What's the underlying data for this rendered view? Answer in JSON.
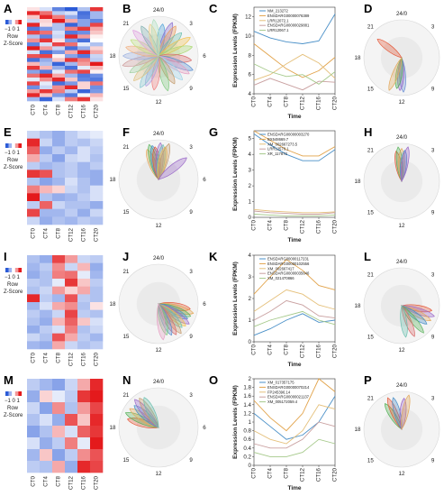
{
  "figure": {
    "rows": [
      {
        "heatmap_letter": "A",
        "radial1_letter": "B",
        "line_letter": "C",
        "radial2_letter": "D",
        "scale": {
          "ticks": "−1 0 1",
          "line1": "Row",
          "line2": "Z-Score"
        },
        "heatmap": [
          [
            0.2,
            -0.3,
            -1.2,
            -1.6,
            -0.6,
            1.4
          ],
          [
            1.5,
            1.0,
            -0.5,
            -0.3,
            -1.4,
            -0.7
          ],
          [
            0.4,
            1.5,
            0.9,
            -0.8,
            -1.3,
            -0.7
          ],
          [
            -0.4,
            0.3,
            1.6,
            0.6,
            -0.9,
            -1.2
          ],
          [
            1.5,
            0.2,
            -0.6,
            -1.5,
            -0.9,
            1.3
          ],
          [
            -1.3,
            -1.0,
            -0.6,
            0.9,
            1.4,
            0.6
          ],
          [
            1.3,
            1.0,
            -0.3,
            -1.3,
            -1.1,
            0.4
          ],
          [
            -0.6,
            -1.2,
            -0.4,
            1.5,
            0.7,
            0.1
          ],
          [
            0.8,
            1.4,
            0.2,
            -1.0,
            -1.4,
            0.0
          ],
          [
            -1.2,
            -0.3,
            1.3,
            1.0,
            -0.2,
            -0.6
          ],
          [
            1.6,
            0.7,
            -0.4,
            -1.4,
            -0.8,
            0.3
          ],
          [
            -0.3,
            -1.4,
            -1.0,
            0.6,
            1.5,
            0.6
          ],
          [
            1.2,
            1.3,
            0.1,
            -0.9,
            -1.3,
            -0.4
          ],
          [
            -1.4,
            -0.8,
            0.4,
            1.4,
            0.9,
            -0.5
          ],
          [
            0.5,
            -0.6,
            -1.5,
            -0.7,
            0.7,
            1.6
          ],
          [
            1.4,
            0.5,
            -0.8,
            -1.4,
            -0.2,
            0.5
          ],
          [
            -0.9,
            -1.3,
            -0.2,
            1.0,
            1.3,
            0.1
          ],
          [
            1.0,
            1.5,
            0.6,
            -0.7,
            -1.3,
            -1.1
          ],
          [
            -0.2,
            0.8,
            1.5,
            0.4,
            -1.2,
            -1.3
          ],
          [
            1.3,
            -0.2,
            -1.4,
            -1.0,
            0.3,
            1.0
          ],
          [
            -1.1,
            -0.4,
            0.8,
            1.5,
            0.3,
            -1.1
          ],
          [
            0.7,
            1.4,
            0.9,
            -0.5,
            -1.5,
            -1.0
          ],
          [
            1.5,
            0.4,
            -1.0,
            -1.3,
            -0.1,
            0.5
          ],
          [
            -0.7,
            -1.5,
            -0.3,
            0.9,
            1.4,
            0.2
          ]
        ],
        "radial1_phases": [
          0.5,
          1.5,
          2,
          3,
          4,
          5,
          6.5,
          7.5,
          8,
          9,
          10,
          11,
          12.5,
          13.5,
          14,
          15,
          16,
          17,
          18,
          19,
          20,
          21,
          22,
          23,
          23.5
        ],
        "radial1_colors": [
          "#4fa3d9",
          "#8a6fd0",
          "#e89b5a",
          "#6cc0b0",
          "#f2c14e",
          "#a8d86e",
          "#d96c6c",
          "#5b8fd1",
          "#e6a0c4",
          "#9fd3e8",
          "#c49a6c",
          "#7fc97f",
          "#f08080",
          "#b0a0e0",
          "#88c8d0",
          "#e0c080",
          "#a0d0a0",
          "#d0a0a0",
          "#9ab0e0",
          "#f0b080",
          "#c0e080",
          "#e0a0e0",
          "#80b0b0",
          "#f0d090",
          "#b0e0c0"
        ],
        "line": {
          "x": [
            "CT0",
            "CT4",
            "CT8",
            "CT12",
            "CT16",
            "CT20"
          ],
          "xlabel": "Time",
          "ylabel": "Expression Levels (FPKM)",
          "ylim": [
            4,
            13
          ],
          "yticks": [
            4,
            6,
            8,
            10,
            12
          ],
          "series": [
            {
              "name": "NM_213272",
              "values": [
                10.5,
                9.8,
                9.4,
                9.2,
                9.5,
                12.3
              ],
              "color": "#4a90c8"
            },
            {
              "name": "ENSDARG00000076389",
              "values": [
                9.2,
                7.9,
                6.6,
                5.7,
                6.4,
                7.8
              ],
              "color": "#e2a34a"
            },
            {
              "name": "LRR12072.1",
              "values": [
                5.4,
                6.0,
                7.1,
                8.1,
                7.2,
                5.6
              ],
              "color": "#e5c07b"
            },
            {
              "name": "ENSDARG00000029881",
              "values": [
                4.9,
                5.6,
                5.0,
                4.4,
                5.3,
                5.2
              ],
              "color": "#c9a0a0"
            },
            {
              "name": "LRR12067.1",
              "values": [
                7.1,
                6.3,
                5.8,
                6.0,
                5.0,
                6.3
              ],
              "color": "#a5c98a"
            }
          ]
        },
        "radial2_phases": [
          20.5,
          11.8,
          12.2,
          12.6,
          13.4
        ],
        "radial2_colors": [
          "#e55b3c",
          "#6a8fd4",
          "#9a68c8",
          "#58b35a",
          "#e3a85b"
        ]
      },
      {
        "heatmap_letter": "E",
        "radial1_letter": "F",
        "line_letter": "G",
        "radial2_letter": "H",
        "scale": {
          "ticks": "−1 0 1",
          "line1": "Row",
          "line2": "Z-Score"
        },
        "heatmap": [
          [
            -0.4,
            -0.6,
            -0.8,
            -0.5,
            -0.3,
            -0.2
          ],
          [
            1.5,
            -0.4,
            -0.8,
            -0.5,
            -0.6,
            -0.4
          ],
          [
            1.1,
            -0.8,
            -0.5,
            -0.7,
            -0.3,
            -0.5
          ],
          [
            0.6,
            -0.5,
            -0.9,
            -0.4,
            -0.3,
            -0.6
          ],
          [
            -0.5,
            -0.7,
            -0.6,
            -0.5,
            -0.7,
            -0.5
          ],
          [
            1.4,
            1.2,
            -0.6,
            -0.5,
            -0.7,
            -0.8
          ],
          [
            -0.6,
            -0.9,
            -0.7,
            -0.3,
            -0.6,
            -0.8
          ],
          [
            0.9,
            0.5,
            0.3,
            -0.4,
            -0.6,
            -0.3
          ],
          [
            1.6,
            -0.6,
            -0.8,
            -0.7,
            -0.5,
            -0.3
          ],
          [
            -0.5,
            1.1,
            -0.4,
            -0.6,
            -0.6,
            -0.8
          ],
          [
            1.3,
            -0.7,
            -0.7,
            -0.5,
            -0.8,
            -0.4
          ],
          [
            -0.4,
            -0.8,
            -0.6,
            -0.7,
            -0.5,
            -0.6
          ]
        ],
        "radial1_phases": [
          22.6,
          23.0,
          23.3,
          23.6,
          0.2,
          0.5,
          0.8,
          1.1,
          3.5
        ],
        "radial1_colors": [
          "#e3a85b",
          "#58b35a",
          "#4a90c8",
          "#e55b3c",
          "#9a68c8",
          "#6cc0b0",
          "#f2c14e",
          "#c49a6c",
          "#9a68c8"
        ],
        "line": {
          "x": [
            "CT0",
            "CT4",
            "CT8",
            "CT12",
            "CT16",
            "CT20"
          ],
          "xlabel": "Time",
          "ylabel": "Expression Levels (FPKM)",
          "ylim": [
            0,
            5.5
          ],
          "yticks": [
            0,
            1,
            2,
            3,
            4,
            5
          ],
          "series": [
            {
              "name": "ENSDARG00000003270",
              "values": [
                5.3,
                4.6,
                4.0,
                3.6,
                3.6,
                4.3
              ],
              "color": "#4a90c8"
            },
            {
              "name": "BX548669.7",
              "values": [
                5.5,
                4.9,
                4.3,
                3.9,
                3.9,
                4.5
              ],
              "color": "#e2a34a"
            },
            {
              "name": "XM_002667273.5",
              "values": [
                0.5,
                0.4,
                0.35,
                0.3,
                0.3,
                0.35
              ],
              "color": "#e5c07b"
            },
            {
              "name": "LRR12570.1",
              "values": [
                0.4,
                0.3,
                0.25,
                0.2,
                0.2,
                0.3
              ],
              "color": "#c9a0a0"
            },
            {
              "name": "XR_117873",
              "values": [
                0.2,
                0.15,
                0.1,
                0.1,
                0.1,
                0.15
              ],
              "color": "#a5c98a"
            }
          ]
        },
        "radial2_phases": [
          23.3,
          23.6,
          0.0,
          0.4,
          0.7
        ],
        "radial2_colors": [
          "#e55b3c",
          "#58b35a",
          "#e3a85b",
          "#4a90c8",
          "#9a68c8"
        ]
      },
      {
        "heatmap_letter": "I",
        "radial1_letter": "J",
        "line_letter": "K",
        "radial2_letter": "L",
        "scale": {
          "ticks": "−1 0 1",
          "line1": "Row",
          "line2": "Z-Score"
        },
        "heatmap": [
          [
            -0.6,
            -0.8,
            1.3,
            0.7,
            -0.4,
            -0.5
          ],
          [
            -0.7,
            -0.5,
            0.8,
            -0.4,
            0.5,
            -0.8
          ],
          [
            -0.8,
            -0.6,
            0.9,
            1.0,
            -0.2,
            -0.7
          ],
          [
            -0.5,
            -0.6,
            -0.2,
            1.4,
            0.4,
            -0.5
          ],
          [
            -0.6,
            -0.4,
            0.7,
            0.3,
            0.6,
            -0.6
          ],
          [
            1.5,
            -0.5,
            -0.7,
            1.2,
            -0.5,
            -0.6
          ],
          [
            -0.7,
            -0.3,
            0.6,
            0.8,
            -0.6,
            0.2
          ],
          [
            -0.5,
            -0.7,
            -0.4,
            1.3,
            -0.5,
            -0.6
          ],
          [
            -0.6,
            -0.8,
            0.5,
            1.1,
            0.4,
            -0.3
          ],
          [
            -0.8,
            -0.5,
            -0.3,
            0.9,
            -0.6,
            -0.4
          ],
          [
            -0.4,
            -0.6,
            1.2,
            0.6,
            -0.5,
            -0.7
          ],
          [
            -0.7,
            -0.8,
            0.6,
            -0.4,
            -0.6,
            -0.5
          ]
        ],
        "radial1_phases": [
          6.6,
          7.0,
          7.4,
          7.8,
          8.2,
          8.6,
          9.0,
          9.5,
          10.0,
          10.5,
          11.0,
          11.5
        ],
        "radial1_colors": [
          "#e55b3c",
          "#e3a85b",
          "#58b35a",
          "#4a90c8",
          "#9a68c8",
          "#f2c14e",
          "#6cc0b0",
          "#c49a6c",
          "#d96c6c",
          "#5b8fd1",
          "#7fc97f",
          "#e6a0c4"
        ],
        "line": {
          "x": [
            "CT0",
            "CT4",
            "CT8",
            "CT12",
            "CT16",
            "CT20"
          ],
          "xlabel": "Time",
          "ylabel": "Expression Levels (FPKM)",
          "ylim": [
            0,
            4
          ],
          "yticks": [
            0,
            1,
            2,
            3,
            4
          ],
          "series": [
            {
              "name": "ENSDARG00000117231",
              "values": [
                0.3,
                0.6,
                1.0,
                1.3,
                0.9,
                1.0
              ],
              "color": "#4a90c8"
            },
            {
              "name": "ENSDARG00000102556",
              "values": [
                2.2,
                3.0,
                3.8,
                3.3,
                2.6,
                2.4
              ],
              "color": "#e2a34a"
            },
            {
              "name": "XM_002667417",
              "values": [
                1.4,
                1.9,
                2.4,
                2.2,
                1.7,
                1.5
              ],
              "color": "#e5c07b"
            },
            {
              "name": "ENSDARG00000035646",
              "values": [
                1.0,
                1.4,
                1.9,
                1.7,
                1.2,
                1.1
              ],
              "color": "#c9a0a0"
            },
            {
              "name": "XM_021470866",
              "values": [
                0.7,
                1.0,
                1.2,
                1.4,
                1.0,
                0.8
              ],
              "color": "#a5c98a"
            }
          ]
        },
        "radial2_phases": [
          6.6,
          7.2,
          7.8,
          8.4,
          9.4,
          10.5,
          11.5
        ],
        "radial2_colors": [
          "#e55b3c",
          "#9a68c8",
          "#e3a85b",
          "#4a90c8",
          "#58b35a",
          "#d96c6c",
          "#6cc0b0"
        ]
      },
      {
        "heatmap_letter": "M",
        "radial1_letter": "N",
        "line_letter": "O",
        "radial2_letter": "P",
        "scale": {
          "ticks": "−1 0 1",
          "line1": "Row",
          "line2": "Z-Score"
        },
        "heatmap": [
          [
            -0.5,
            -0.7,
            -0.9,
            -0.4,
            0.6,
            1.5
          ],
          [
            -0.8,
            0.3,
            -0.2,
            -0.5,
            1.4,
            1.6
          ],
          [
            -0.4,
            -0.9,
            0.8,
            -0.6,
            0.7,
            1.3
          ],
          [
            -0.6,
            -0.3,
            -0.8,
            1.2,
            0.4,
            1.5
          ],
          [
            -0.9,
            -0.6,
            0.5,
            -0.3,
            1.1,
            1.4
          ],
          [
            -0.3,
            -0.8,
            -0.5,
            0.9,
            -0.2,
            1.6
          ],
          [
            -0.7,
            0.4,
            -0.9,
            -0.5,
            0.8,
            1.2
          ],
          [
            -0.5,
            -0.6,
            0.6,
            -0.8,
            1.5,
            1.3
          ]
        ],
        "radial1_phases": [
          19.0,
          19.6,
          20.2,
          20.8,
          21.3,
          21.8,
          22.3
        ],
        "radial1_colors": [
          "#e55b3c",
          "#58b35a",
          "#e3a85b",
          "#4a90c8",
          "#9a68c8",
          "#c49a6c",
          "#6cc0b0"
        ],
        "line": {
          "x": [
            "CT0",
            "CT4",
            "CT8",
            "CT12",
            "CT16",
            "CT20"
          ],
          "xlabel": "Time",
          "ylabel": "Expression Levels (FPKM)",
          "ylim": [
            0,
            2.0
          ],
          "yticks": [
            0,
            0.2,
            0.4,
            0.6,
            0.8,
            1.0,
            1.2,
            1.4,
            1.6,
            1.8,
            2.0
          ],
          "series": [
            {
              "name": "XM_017357175",
              "values": [
                1.2,
                0.9,
                0.6,
                0.7,
                1.0,
                1.6
              ],
              "color": "#4a90c8"
            },
            {
              "name": "ENSDARG00000070214",
              "values": [
                1.5,
                1.1,
                0.8,
                1.2,
                2.0,
                1.7
              ],
              "color": "#e2a34a"
            },
            {
              "name": "FP245396.14",
              "values": [
                0.8,
                0.6,
                0.5,
                0.8,
                1.4,
                1.3
              ],
              "color": "#e5c07b"
            },
            {
              "name": "ENSDARG00000021137",
              "values": [
                0.5,
                0.4,
                0.4,
                0.6,
                1.0,
                0.9
              ],
              "color": "#c9a0a0"
            },
            {
              "name": "XM_005172059.4",
              "values": [
                0.3,
                0.2,
                0.2,
                0.3,
                0.6,
                0.5
              ],
              "color": "#a5c98a"
            }
          ]
        },
        "radial2_phases": [
          21.8,
          22.4,
          23.0,
          0.3,
          0.8
        ],
        "radial2_colors": [
          "#58b35a",
          "#e55b3c",
          "#4a90c8",
          "#9a68c8",
          "#e3a85b"
        ]
      }
    ],
    "clock_labels": {
      "top": "24/0",
      "tr": "3",
      "right": "6",
      "br": "9",
      "bottom": "12",
      "bl": "15",
      "left": "18",
      "tl": "21"
    },
    "colors": {
      "high": "#e41a1c",
      "low": "#2b5bd7",
      "mid": "#ffffff",
      "ring": "#e0e0e0"
    }
  }
}
